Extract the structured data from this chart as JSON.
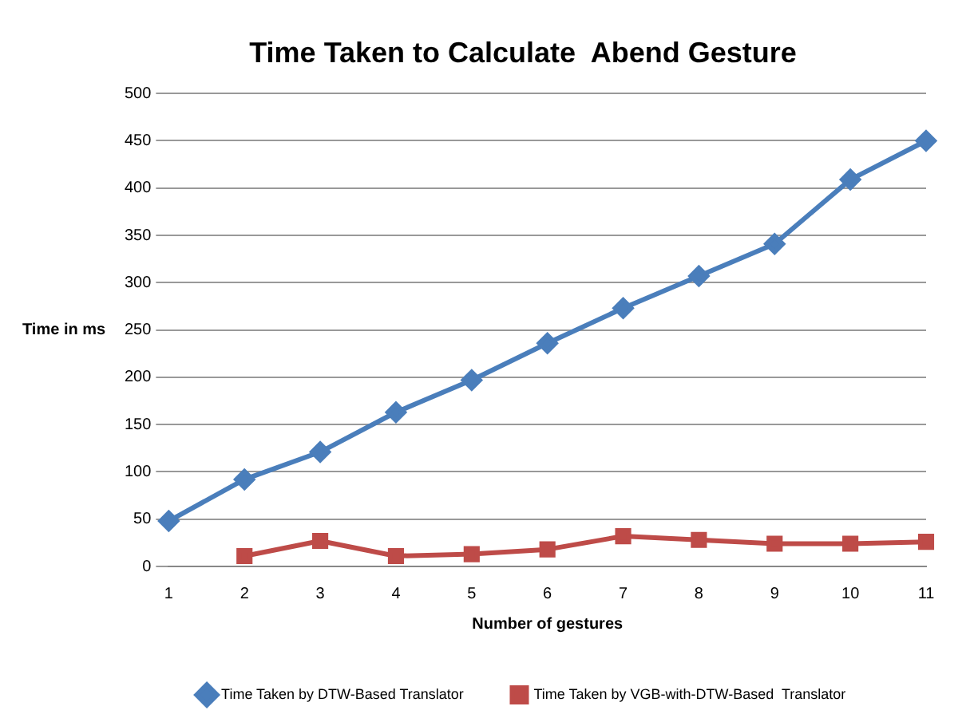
{
  "chart_data": {
    "type": "line",
    "title": "Time Taken to Calculate  Abend Gesture",
    "xlabel": "Number of gestures",
    "ylabel": "Time in ms",
    "categories": [
      "1",
      "2",
      "3",
      "4",
      "5",
      "6",
      "7",
      "8",
      "9",
      "10",
      "11"
    ],
    "series": [
      {
        "name": "Time Taken by DTW-Based Translator",
        "color": "#4a7ebb",
        "marker": "diamond",
        "values": [
          48,
          92,
          121,
          163,
          197,
          236,
          273,
          307,
          341,
          409,
          450
        ]
      },
      {
        "name": "Time Taken by VGB-with-DTW-Based  Translator",
        "color": "#be4b48",
        "marker": "square",
        "values": [
          null,
          11,
          27,
          11,
          13,
          18,
          32,
          28,
          24,
          24,
          26
        ]
      }
    ],
    "ylim": [
      0,
      500
    ],
    "yticks": [
      0,
      50,
      100,
      150,
      200,
      250,
      300,
      350,
      400,
      450,
      500
    ],
    "grid": "y",
    "legend": "bottom"
  }
}
